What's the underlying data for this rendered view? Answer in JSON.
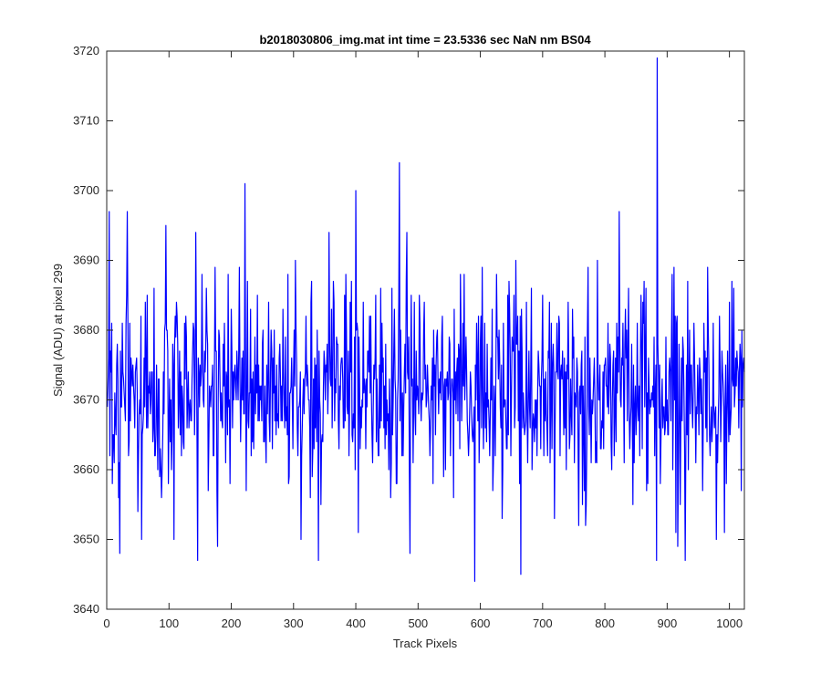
{
  "chart_data": {
    "type": "line",
    "title": "b2018030806_img.mat int time = 23.5336 sec  NaN nm BS04",
    "xlabel": "Track Pixels",
    "ylabel": "Signal (ADU) at pixel 299",
    "xlim": [
      0,
      1024
    ],
    "ylim": [
      3640,
      3720
    ],
    "xticks": [
      0,
      100,
      200,
      300,
      400,
      500,
      600,
      700,
      800,
      900,
      1000
    ],
    "yticks": [
      3640,
      3650,
      3660,
      3670,
      3680,
      3690,
      3700,
      3710,
      3720
    ],
    "grid": false,
    "series_color": "#0000ff",
    "series": [
      {
        "x_start": 1,
        "x_step": 1,
        "count": 1024,
        "mean": 3671.5,
        "stdev": 7.5,
        "min": 3644,
        "max": 3719,
        "spikes": [
          {
            "x": 4,
            "y": 3697
          },
          {
            "x": 21,
            "y": 3648
          },
          {
            "x": 33,
            "y": 3697
          },
          {
            "x": 56,
            "y": 3650
          },
          {
            "x": 95,
            "y": 3695
          },
          {
            "x": 108,
            "y": 3650
          },
          {
            "x": 143,
            "y": 3694
          },
          {
            "x": 146,
            "y": 3647
          },
          {
            "x": 178,
            "y": 3649
          },
          {
            "x": 222,
            "y": 3701
          },
          {
            "x": 303,
            "y": 3690
          },
          {
            "x": 312,
            "y": 3650
          },
          {
            "x": 340,
            "y": 3647
          },
          {
            "x": 400,
            "y": 3700
          },
          {
            "x": 404,
            "y": 3651
          },
          {
            "x": 470,
            "y": 3704
          },
          {
            "x": 487,
            "y": 3648
          },
          {
            "x": 591,
            "y": 3644
          },
          {
            "x": 665,
            "y": 3645
          },
          {
            "x": 883,
            "y": 3647
          },
          {
            "x": 884,
            "y": 3719
          }
        ]
      }
    ]
  }
}
